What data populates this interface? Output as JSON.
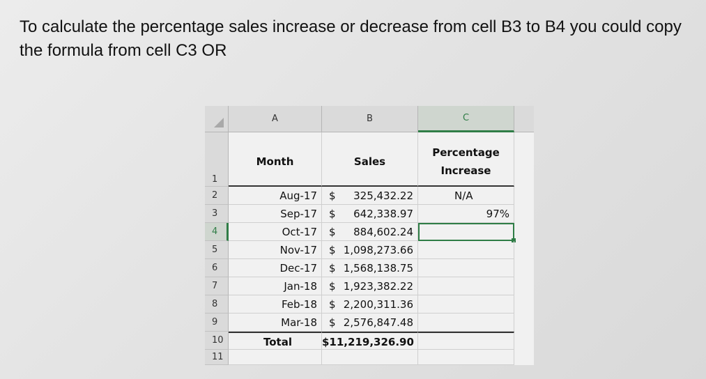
{
  "question": "To calculate the percentage sales increase or decrease from cell B3 to B4 you could copy the formula from cell C3 OR",
  "spreadsheet": {
    "columns": [
      "A",
      "B",
      "C"
    ],
    "rows": [
      "1",
      "2",
      "3",
      "4",
      "5",
      "6",
      "7",
      "8",
      "9",
      "10",
      "11"
    ],
    "header": {
      "month": "Month",
      "sales": "Sales",
      "pct_line1": "Percentage",
      "pct_line2": "Increase"
    },
    "data": [
      {
        "month": "Aug-17",
        "currency": "$",
        "sales": "325,432.22",
        "pct": "N/A"
      },
      {
        "month": "Sep-17",
        "currency": "$",
        "sales": "642,338.97",
        "pct": "97%"
      },
      {
        "month": "Oct-17",
        "currency": "$",
        "sales": "884,602.24",
        "pct": ""
      },
      {
        "month": "Nov-17",
        "currency": "$",
        "sales": "1,098,273.66",
        "pct": ""
      },
      {
        "month": "Dec-17",
        "currency": "$",
        "sales": "1,568,138.75",
        "pct": ""
      },
      {
        "month": "Jan-18",
        "currency": "$",
        "sales": "1,923,382.22",
        "pct": ""
      },
      {
        "month": "Feb-18",
        "currency": "$",
        "sales": "2,200,311.36",
        "pct": ""
      },
      {
        "month": "Mar-18",
        "currency": "$",
        "sales": "2,576,847.48",
        "pct": ""
      }
    ],
    "total": {
      "label": "Total",
      "sales": "$11,219,326.90"
    },
    "selected_cell": "C4",
    "accent_color": "#2f7d46"
  }
}
